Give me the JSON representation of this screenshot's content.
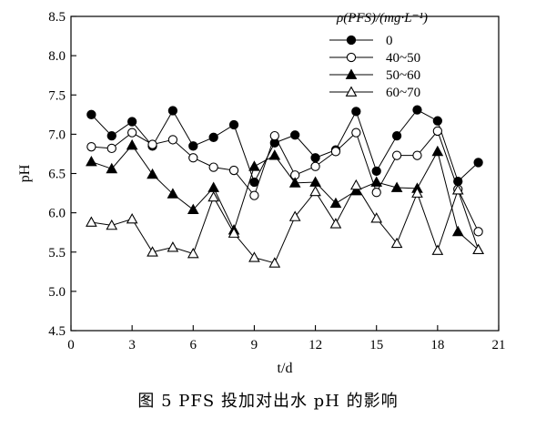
{
  "caption": "图 5   PFS 投加对出水 pH 的影响",
  "chart_data": {
    "type": "line",
    "title": "",
    "xlabel": "t/d",
    "ylabel": "pH",
    "xlim": [
      0,
      21
    ],
    "ylim": [
      4.5,
      8.5
    ],
    "xticks": [
      0,
      3,
      6,
      9,
      12,
      15,
      18,
      21
    ],
    "yticks": [
      4.5,
      5.0,
      5.5,
      6.0,
      6.5,
      7.0,
      7.5,
      8.0,
      8.5
    ],
    "xtick_labels": [
      "0",
      "3",
      "6",
      "9",
      "12",
      "15",
      "18",
      "21"
    ],
    "ytick_labels": [
      "4.5",
      "5.0",
      "5.5",
      "6.0",
      "6.5",
      "7.0",
      "7.5",
      "8.0",
      "8.5"
    ],
    "grid": false,
    "legend_title": "ρ(PFS)/(mg·L⁻¹)",
    "legend_position": "top-right",
    "x": [
      1,
      2,
      3,
      4,
      5,
      6,
      7,
      8,
      9,
      10,
      11,
      12,
      13,
      14,
      15,
      16,
      17,
      18,
      19,
      20
    ],
    "series": [
      {
        "name": "0",
        "marker": "circle-filled",
        "values": [
          7.25,
          6.98,
          7.16,
          6.85,
          7.3,
          6.85,
          6.96,
          7.12,
          6.39,
          6.89,
          6.99,
          6.7,
          6.8,
          7.29,
          6.53,
          6.98,
          7.31,
          7.17,
          6.4,
          6.64
        ]
      },
      {
        "name": "40~50",
        "marker": "circle-open",
        "values": [
          6.84,
          6.82,
          7.02,
          6.87,
          6.93,
          6.7,
          6.58,
          6.54,
          6.22,
          6.98,
          6.48,
          6.59,
          6.78,
          7.02,
          6.26,
          6.73,
          6.73,
          7.04,
          6.3,
          5.76
        ]
      },
      {
        "name": "50~60",
        "marker": "triangle-filled",
        "values": [
          6.65,
          6.56,
          6.86,
          6.49,
          6.24,
          6.04,
          6.32,
          5.78,
          6.59,
          6.73,
          6.38,
          6.39,
          6.12,
          6.28,
          6.39,
          6.32,
          6.31,
          6.78,
          5.76,
          5.53
        ]
      },
      {
        "name": "60~70",
        "marker": "triangle-open",
        "values": [
          5.88,
          5.84,
          5.92,
          5.5,
          5.56,
          5.48,
          6.2,
          5.74,
          5.43,
          5.36,
          5.95,
          6.27,
          5.86,
          6.35,
          5.93,
          5.61,
          6.25,
          5.52,
          6.29,
          5.53
        ]
      }
    ]
  }
}
